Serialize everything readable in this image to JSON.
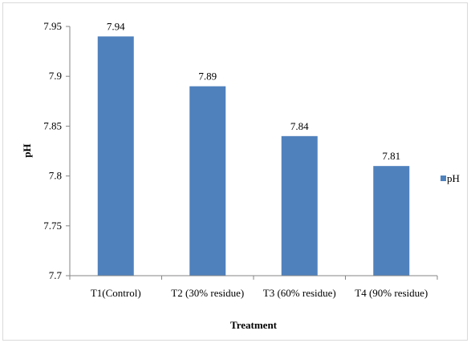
{
  "chart_data": {
    "type": "bar",
    "categories": [
      "T1(Control)",
      "T2 (30% residue)",
      "T3 (60% residue)",
      "T4 (90% residue)"
    ],
    "series": [
      {
        "name": "pH",
        "values": [
          7.94,
          7.89,
          7.84,
          7.81
        ]
      }
    ],
    "data_labels": [
      "7.94",
      "7.89",
      "7.84",
      "7.81"
    ],
    "title": "",
    "xlabel": "Treatment",
    "ylabel": "pH",
    "ylim": [
      7.7,
      7.95
    ],
    "yticks": [
      "7.7",
      "7.75",
      "7.8",
      "7.85",
      "7.9",
      "7.95"
    ],
    "grid": false,
    "legend": {
      "position": "right",
      "entries": [
        "pH"
      ]
    },
    "colors": {
      "bar": "#4f81bd",
      "axis": "#868686"
    }
  }
}
